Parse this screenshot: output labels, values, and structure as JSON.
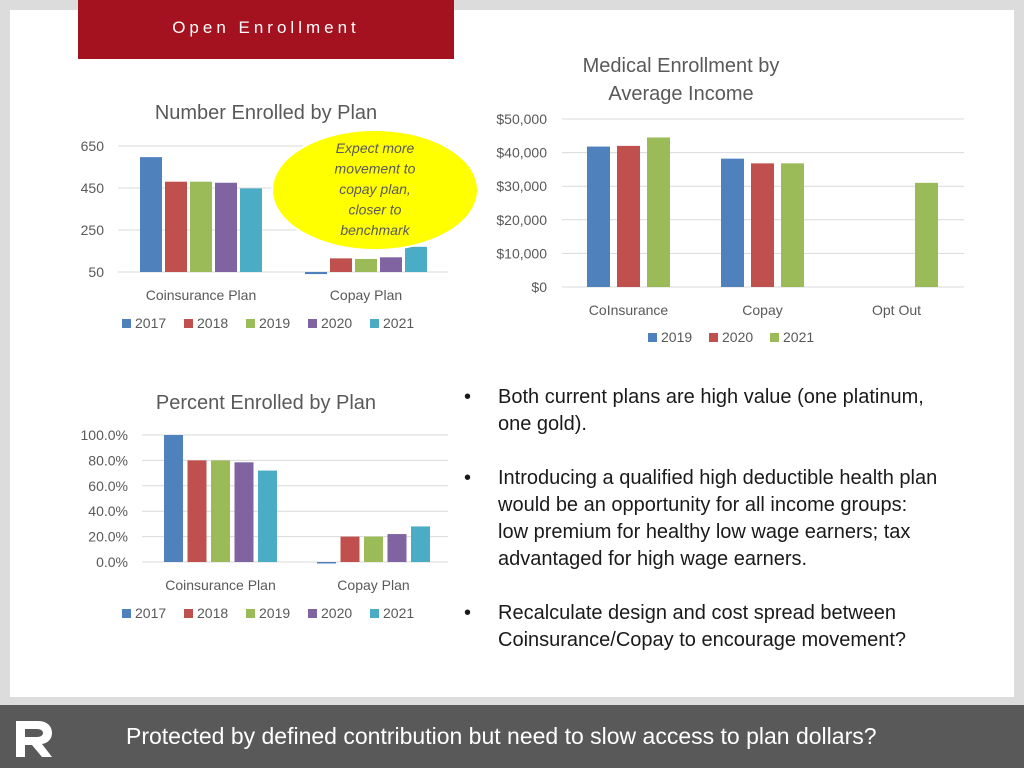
{
  "header": {
    "title": "Open Enrollment"
  },
  "footer": {
    "text": "Protected by defined contribution but need to slow access to plan dollars?",
    "logo_text": "R"
  },
  "callout": {
    "lines": [
      "Expect more",
      "movement to",
      "copay plan,",
      "closer to",
      "benchmark"
    ],
    "color": "#ffff00"
  },
  "bullets": [
    {
      "lines": [
        "Both current plans are high value (one platinum,",
        "one gold)."
      ]
    },
    {
      "lines": [
        "Introducing a qualified high deductible health plan",
        "would be an opportunity for all income groups:",
        "low premium for healthy low wage earners; tax",
        "advantaged for high wage earners."
      ]
    },
    {
      "lines": [
        "Recalculate design and cost spread between",
        "Coinsurance/Copay to encourage movement?"
      ]
    }
  ],
  "chart_data": [
    {
      "type": "bar",
      "title": "Number Enrolled by Plan",
      "categories": [
        "Coinsurance Plan",
        "Copay Plan"
      ],
      "yticks": [
        "650",
        "450",
        "250",
        "50"
      ],
      "ylim": [
        50,
        650
      ],
      "grid": true,
      "legend_position": "bottom",
      "series": [
        {
          "name": "2017",
          "color": "#4f81bd",
          "values": [
            597,
            40
          ]
        },
        {
          "name": "2018",
          "color": "#c0504d",
          "values": [
            480,
            115
          ]
        },
        {
          "name": "2019",
          "color": "#9bbb59",
          "values": [
            480,
            112
          ]
        },
        {
          "name": "2020",
          "color": "#8064a2",
          "values": [
            475,
            120
          ]
        },
        {
          "name": "2021",
          "color": "#4bacc6",
          "values": [
            448,
            170
          ]
        }
      ]
    },
    {
      "type": "bar",
      "title": "Medical Enrollment by Average Income",
      "title_lines": [
        "Medical Enrollment by",
        "Average Income"
      ],
      "categories": [
        "CoInsurance",
        "Copay",
        "Opt Out"
      ],
      "yticks": [
        "$50,000",
        "$40,000",
        "$30,000",
        "$20,000",
        "$10,000",
        "$0"
      ],
      "ylim": [
        0,
        50000
      ],
      "grid": true,
      "legend_position": "bottom",
      "series": [
        {
          "name": "2019",
          "color": "#4f81bd",
          "values": [
            41800,
            38200,
            null
          ]
        },
        {
          "name": "2020",
          "color": "#c0504d",
          "values": [
            42000,
            36800,
            null
          ]
        },
        {
          "name": "2021",
          "color": "#9bbb59",
          "values": [
            44500,
            36800,
            31000
          ]
        }
      ]
    },
    {
      "type": "bar",
      "title": "Percent Enrolled by Plan",
      "categories": [
        "Coinsurance Plan",
        "Copay Plan"
      ],
      "yticks": [
        "100.0%",
        "80.0%",
        "60.0%",
        "40.0%",
        "20.0%",
        "0.0%"
      ],
      "ylim": [
        0,
        100
      ],
      "grid": true,
      "legend_position": "bottom",
      "series": [
        {
          "name": "2017",
          "color": "#4f81bd",
          "values": [
            100,
            0
          ]
        },
        {
          "name": "2018",
          "color": "#c0504d",
          "values": [
            80,
            20
          ]
        },
        {
          "name": "2019",
          "color": "#9bbb59",
          "values": [
            80,
            20
          ]
        },
        {
          "name": "2020",
          "color": "#8064a2",
          "values": [
            78.5,
            22
          ]
        },
        {
          "name": "2021",
          "color": "#4bacc6",
          "values": [
            72,
            28
          ]
        }
      ]
    }
  ]
}
